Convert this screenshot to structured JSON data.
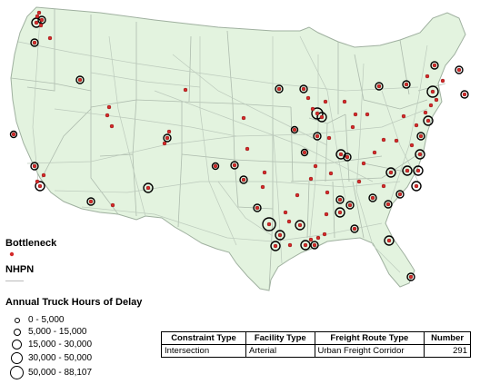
{
  "legend": {
    "bottleneck_label": "Bottleneck",
    "nhpn_label": "NHPN",
    "delay_title": "Annual Truck Hours of Delay",
    "classes": [
      "0 - 5,000",
      "5,000 - 15,000",
      "15,000 - 30,000",
      "30,000 - 50,000",
      "50,000 - 88,107"
    ]
  },
  "info_table": {
    "headers": [
      "Constraint Type",
      "Facility Type",
      "Freight Route Type",
      "Number"
    ],
    "row": [
      "Intersection",
      "Arterial",
      "Urban Freight Corridor",
      "291"
    ]
  },
  "colors": {
    "land": "#e3f3df",
    "roads": "#b9c7b9",
    "state_borders": "#a9b8a9",
    "bottleneck_dot": "#d42a2a",
    "ring": "#000000"
  }
}
